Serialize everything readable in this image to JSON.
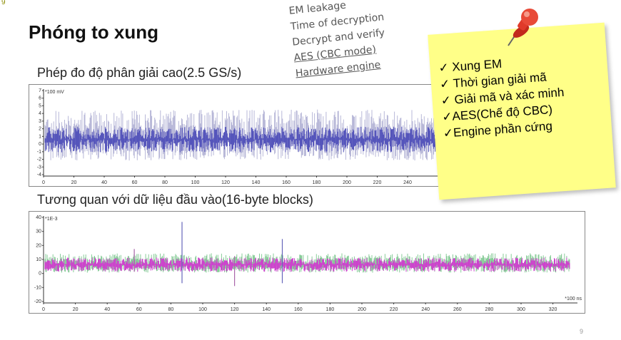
{
  "corner_number": "9",
  "title": "Phóng to xung",
  "handwritten": {
    "lines": [
      "EM leakage",
      "Time of decryption",
      "Decrypt and verify",
      "AES (CBC mode)",
      "Hardware engine"
    ]
  },
  "plot1": {
    "subtitle": "Phép đo độ phân giải cao(2.5 GS/s)",
    "unit": "*100 mV",
    "y_ticks": [
      "7",
      "6",
      "5",
      "4",
      "3",
      "2",
      "1",
      "0",
      "-1",
      "-2",
      "-3",
      "-4"
    ],
    "x_ticks": [
      "0",
      "20",
      "40",
      "60",
      "80",
      "100",
      "120",
      "140",
      "160",
      "180",
      "200",
      "220",
      "240"
    ]
  },
  "plot2": {
    "subtitle": "Tương quan với dữ liệu đầu vào(16-byte blocks)",
    "unit": "*1E-3",
    "x_unit": "*100 ns",
    "y_ticks": [
      "40",
      "30",
      "20",
      "10",
      "0",
      "-10",
      "-20"
    ],
    "x_ticks": [
      "0",
      "20",
      "40",
      "60",
      "80",
      "100",
      "120",
      "140",
      "160",
      "180",
      "200",
      "220",
      "240",
      "260",
      "280",
      "300",
      "320"
    ]
  },
  "sticky_note": {
    "items": [
      "✓ Xung EM",
      "✓ Thời gian giải mã",
      "✓ Giải mã và xác minh",
      "✓AES(Chế độ CBC)",
      "✓Engine phần cứng"
    ]
  },
  "page_number": "9",
  "colors": {
    "trace1": "#5555bb",
    "trace1_bg": "#b8b8d8",
    "trace2": "#cc44cc",
    "trace2_bg": "#88cc99",
    "note": "#ffff88",
    "pin": "#e03a2a"
  }
}
